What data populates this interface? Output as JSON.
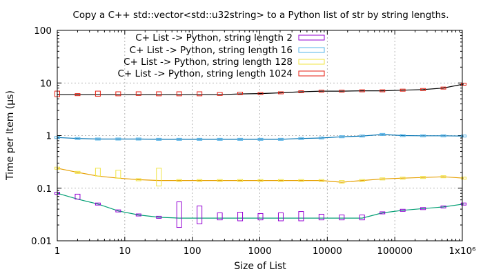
{
  "chart_data": {
    "type": "line",
    "title": "Copy a C++ std::vector<std::u32string> to a Python list of str by string lengths.",
    "xlabel": "Size of List",
    "ylabel": "Time per Item (µs)",
    "xscale": "log",
    "yscale": "log",
    "xlim": [
      1,
      1000000
    ],
    "ylim": [
      0.01,
      100
    ],
    "grid": true,
    "legend_position": "top",
    "x_ticks": [
      {
        "value": 1,
        "label": "1"
      },
      {
        "value": 10,
        "label": "10"
      },
      {
        "value": 100,
        "label": "100"
      },
      {
        "value": 1000,
        "label": "1000"
      },
      {
        "value": 10000,
        "label": "10000"
      },
      {
        "value": 100000,
        "label": "100000"
      },
      {
        "value": 1000000,
        "label": "1x10⁶"
      }
    ],
    "y_ticks": [
      {
        "value": 0.01,
        "label": "0.01"
      },
      {
        "value": 0.1,
        "label": "0.1"
      },
      {
        "value": 1,
        "label": "1"
      },
      {
        "value": 10,
        "label": "10"
      },
      {
        "value": 100,
        "label": "100"
      }
    ],
    "series": [
      {
        "name": "C+ List -> Python, string length 2",
        "color": "#9400d3",
        "line_color": "#009e73",
        "x": [
          1,
          2,
          4,
          8,
          16,
          32,
          64,
          128,
          256,
          512,
          1024,
          2048,
          4096,
          8192,
          16384,
          32768,
          65536,
          131072,
          262144,
          524288,
          1048576
        ],
        "y": [
          0.08,
          0.062,
          0.05,
          0.037,
          0.031,
          0.028,
          0.027,
          0.027,
          0.027,
          0.027,
          0.027,
          0.027,
          0.027,
          0.027,
          0.027,
          0.027,
          0.034,
          0.038,
          0.041,
          0.044,
          0.05
        ],
        "low": [
          0.08,
          0.062,
          0.05,
          0.037,
          0.031,
          0.028,
          0.018,
          0.021,
          0.025,
          0.024,
          0.025,
          0.024,
          0.024,
          0.025,
          0.025,
          0.025,
          0.034,
          0.038,
          0.041,
          0.044,
          0.05
        ],
        "high": [
          0.08,
          0.077,
          0.05,
          0.037,
          0.031,
          0.028,
          0.055,
          0.046,
          0.034,
          0.035,
          0.033,
          0.034,
          0.036,
          0.032,
          0.031,
          0.031,
          0.034,
          0.038,
          0.041,
          0.047,
          0.05
        ]
      },
      {
        "name": "C+ List -> Python, string length 16",
        "color": "#56b4e9",
        "line_color": "#0072b2",
        "x": [
          1,
          2,
          4,
          8,
          16,
          32,
          64,
          128,
          256,
          512,
          1024,
          2048,
          4096,
          8192,
          16384,
          32768,
          65536,
          131072,
          262144,
          524288,
          1048576
        ],
        "y": [
          0.92,
          0.88,
          0.86,
          0.86,
          0.86,
          0.85,
          0.85,
          0.85,
          0.85,
          0.85,
          0.85,
          0.85,
          0.88,
          0.9,
          0.95,
          0.98,
          1.05,
          1.0,
          0.99,
          0.99,
          0.98
        ],
        "low": [
          0.92,
          0.88,
          0.86,
          0.86,
          0.86,
          0.85,
          0.85,
          0.85,
          0.85,
          0.85,
          0.85,
          0.85,
          0.88,
          0.9,
          0.95,
          0.98,
          1.05,
          1.0,
          0.99,
          0.99,
          0.98
        ],
        "high": [
          0.92,
          0.88,
          0.86,
          0.86,
          0.86,
          0.85,
          0.85,
          0.85,
          0.85,
          0.85,
          0.85,
          0.85,
          0.88,
          0.9,
          0.95,
          0.98,
          1.05,
          1.0,
          0.99,
          0.99,
          0.98
        ]
      },
      {
        "name": "C+ List -> Python, string length 128",
        "color": "#f0e442",
        "line_color": "#e69f00",
        "x": [
          1,
          2,
          4,
          8,
          16,
          32,
          64,
          128,
          256,
          512,
          1024,
          2048,
          4096,
          8192,
          16384,
          32768,
          65536,
          131072,
          262144,
          524288,
          1048576
        ],
        "y": [
          0.24,
          0.2,
          0.17,
          0.155,
          0.145,
          0.14,
          0.14,
          0.14,
          0.14,
          0.14,
          0.14,
          0.14,
          0.14,
          0.14,
          0.13,
          0.14,
          0.15,
          0.155,
          0.16,
          0.165,
          0.155
        ],
        "low": [
          0.24,
          0.2,
          0.17,
          0.155,
          0.145,
          0.11,
          0.14,
          0.14,
          0.14,
          0.14,
          0.14,
          0.14,
          0.14,
          0.14,
          0.125,
          0.14,
          0.15,
          0.155,
          0.16,
          0.165,
          0.155
        ],
        "high": [
          0.24,
          0.2,
          0.24,
          0.22,
          0.145,
          0.24,
          0.15,
          0.14,
          0.14,
          0.14,
          0.14,
          0.14,
          0.14,
          0.14,
          0.14,
          0.14,
          0.16,
          0.155,
          0.16,
          0.175,
          0.155
        ]
      },
      {
        "name": "C+ List -> Python, string length 1024",
        "color": "#e51e10",
        "line_color": "#000000",
        "x": [
          1,
          2,
          4,
          8,
          16,
          32,
          64,
          128,
          256,
          512,
          1024,
          2048,
          4096,
          8192,
          16384,
          32768,
          65536,
          131072,
          262144,
          524288,
          1048576
        ],
        "y": [
          6.0,
          6.0,
          6.0,
          6.0,
          6.0,
          6.0,
          6.0,
          6.0,
          6.0,
          6.2,
          6.3,
          6.5,
          6.8,
          7.0,
          7.0,
          7.1,
          7.1,
          7.3,
          7.5,
          8.0,
          9.5
        ],
        "low": [
          5.5,
          6.0,
          5.6,
          5.7,
          5.8,
          5.7,
          5.7,
          5.7,
          5.8,
          6.0,
          6.3,
          6.5,
          6.8,
          7.0,
          7.0,
          7.1,
          7.1,
          7.3,
          7.5,
          8.0,
          9.5
        ],
        "high": [
          7.0,
          6.0,
          7.0,
          6.8,
          6.8,
          6.8,
          6.8,
          6.8,
          6.6,
          6.7,
          6.5,
          6.5,
          7.1,
          7.6,
          7.0,
          7.1,
          7.1,
          7.3,
          7.5,
          8.0,
          9.5
        ]
      }
    ]
  }
}
